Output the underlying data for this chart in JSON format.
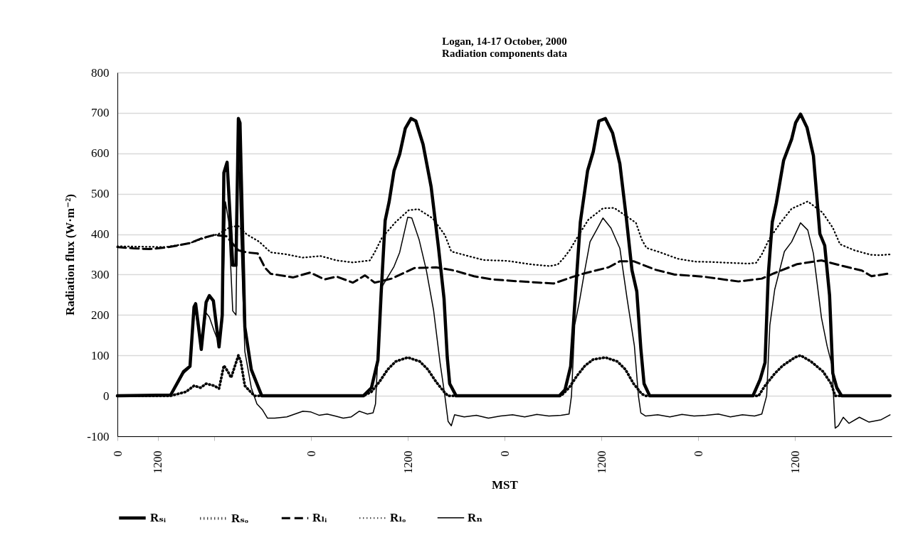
{
  "chart_data": {
    "type": "line",
    "title": "Logan, 14-17 October, 2000",
    "subtitle": "Radiation components data",
    "xlabel": "MST",
    "ylabel": "Radiation flux (W·m⁻²)",
    "xlim": [
      "2000-10-14T00:00",
      "2000-10-18T00:00"
    ],
    "xticks": [
      {
        "value": "2000-10-14T00:00",
        "label": "0"
      },
      {
        "value": "2000-10-14T05:00",
        "label": "1200"
      },
      {
        "value": "2000-10-14T12:00",
        "label": null
      },
      {
        "value": "2000-10-15T00:00",
        "label": "0"
      },
      {
        "value": "2000-10-15T12:00",
        "label": "1200"
      },
      {
        "value": "2000-10-16T00:00",
        "label": "0"
      },
      {
        "value": "2000-10-16T12:00",
        "label": "1200"
      },
      {
        "value": "2000-10-17T00:00",
        "label": "0"
      },
      {
        "value": "2000-10-17T12:00",
        "label": "1200"
      }
    ],
    "ylim": [
      -100,
      800
    ],
    "yticks": [
      -100,
      0,
      100,
      200,
      300,
      400,
      500,
      600,
      700,
      800
    ],
    "grid": "y",
    "legend": "bottom",
    "marker": "none",
    "series": [
      {
        "name": "Rₛᵢ",
        "color": "#000000",
        "line_style": "solid",
        "x": [
          "2000-10-14T00:00",
          "2000-10-14T06:36",
          "2000-10-14T08:12",
          "2000-10-14T09:00",
          "2000-10-14T09:30",
          "2000-10-14T09:42",
          "2000-10-14T10:24",
          "2000-10-14T11:00",
          "2000-10-14T11:24",
          "2000-10-14T11:54",
          "2000-10-14T12:36",
          "2000-10-14T13:00",
          "2000-10-14T13:12",
          "2000-10-14T13:36",
          "2000-10-14T14:18",
          "2000-10-14T14:42",
          "2000-10-14T15:00",
          "2000-10-14T15:12",
          "2000-10-14T15:48",
          "2000-10-14T16:36",
          "2000-10-14T17:18",
          "2000-10-14T17:54",
          "2000-10-15T06:30",
          "2000-10-15T07:30",
          "2000-10-15T08:18",
          "2000-10-15T08:42",
          "2000-10-15T09:12",
          "2000-10-15T09:42",
          "2000-10-15T10:18",
          "2000-10-15T11:00",
          "2000-10-15T11:42",
          "2000-10-15T12:24",
          "2000-10-15T13:00",
          "2000-10-15T13:54",
          "2000-10-15T14:54",
          "2000-10-15T15:48",
          "2000-10-15T16:30",
          "2000-10-15T16:54",
          "2000-10-15T17:12",
          "2000-10-15T18:00",
          "2000-10-16T06:48",
          "2000-10-16T07:30",
          "2000-10-16T08:12",
          "2000-10-16T08:48",
          "2000-10-16T09:24",
          "2000-10-16T10:18",
          "2000-10-16T11:00",
          "2000-10-16T11:42",
          "2000-10-16T12:30",
          "2000-10-16T13:24",
          "2000-10-16T14:18",
          "2000-10-16T15:06",
          "2000-10-16T15:48",
          "2000-10-16T16:24",
          "2000-10-16T16:54",
          "2000-10-16T17:18",
          "2000-10-16T18:00",
          "2000-10-17T06:48",
          "2000-10-17T07:42",
          "2000-10-17T08:18",
          "2000-10-17T08:42",
          "2000-10-17T09:12",
          "2000-10-17T09:42",
          "2000-10-17T10:36",
          "2000-10-17T11:36",
          "2000-10-17T12:06",
          "2000-10-17T12:42",
          "2000-10-17T13:30",
          "2000-10-17T14:18",
          "2000-10-17T15:06",
          "2000-10-17T15:42",
          "2000-10-17T16:18",
          "2000-10-17T16:42",
          "2000-10-17T17:12",
          "2000-10-17T17:48",
          "2000-10-17T23:48"
        ],
        "values": [
          0,
          2,
          60,
          73,
          220,
          228,
          115,
          232,
          248,
          235,
          121,
          200,
          552,
          578,
          323,
          323,
          686,
          675,
          170,
          65,
          30,
          0,
          0,
          20,
          88,
          253,
          434,
          481,
          557,
          598,
          662,
          686,
          680,
          622,
          517,
          369,
          240,
          95,
          30,
          0,
          0,
          15,
          73,
          255,
          430,
          557,
          604,
          680,
          686,
          650,
          574,
          440,
          311,
          258,
          117,
          30,
          0,
          0,
          41,
          82,
          299,
          430,
          477,
          582,
          635,
          676,
          697,
          664,
          594,
          401,
          372,
          249,
          56,
          20,
          0,
          0
        ]
      },
      {
        "name": "Rₛₒ",
        "color": "#000000",
        "line_style": "dotted",
        "x": [
          "2000-10-14T00:00",
          "2000-10-14T06:36",
          "2000-10-14T08:30",
          "2000-10-14T09:30",
          "2000-10-14T10:18",
          "2000-10-14T11:00",
          "2000-10-14T12:00",
          "2000-10-14T12:36",
          "2000-10-14T13:12",
          "2000-10-14T13:42",
          "2000-10-14T14:06",
          "2000-10-14T15:00",
          "2000-10-14T15:18",
          "2000-10-14T15:48",
          "2000-10-14T16:30",
          "2000-10-14T17:00",
          "2000-10-15T06:30",
          "2000-10-15T07:30",
          "2000-10-15T08:30",
          "2000-10-15T09:30",
          "2000-10-15T10:30",
          "2000-10-15T12:00",
          "2000-10-15T13:30",
          "2000-10-15T14:30",
          "2000-10-15T15:30",
          "2000-10-15T16:30",
          "2000-10-15T17:00",
          "2000-10-16T07:00",
          "2000-10-16T08:00",
          "2000-10-16T09:00",
          "2000-10-16T10:00",
          "2000-10-16T11:00",
          "2000-10-16T12:30",
          "2000-10-16T14:00",
          "2000-10-16T15:00",
          "2000-10-16T16:00",
          "2000-10-16T17:00",
          "2000-10-16T17:30",
          "2000-10-17T07:30",
          "2000-10-17T08:18",
          "2000-10-17T09:30",
          "2000-10-17T10:30",
          "2000-10-17T12:00",
          "2000-10-17T12:42",
          "2000-10-17T14:00",
          "2000-10-17T15:30",
          "2000-10-17T16:30",
          "2000-10-17T17:00",
          "2000-10-17T23:48"
        ],
        "values": [
          0,
          0,
          10,
          25,
          20,
          30,
          25,
          18,
          75,
          60,
          45,
          100,
          85,
          25,
          10,
          0,
          0,
          10,
          35,
          65,
          85,
          95,
          85,
          65,
          35,
          10,
          0,
          0,
          20,
          50,
          75,
          90,
          95,
          85,
          65,
          30,
          5,
          0,
          0,
          25,
          55,
          75,
          95,
          100,
          85,
          60,
          30,
          0,
          0
        ]
      },
      {
        "name": "Rₗᵢ",
        "color": "#000000",
        "line_style": "dashed",
        "x": [
          "2000-10-14T00:00",
          "2000-10-14T02:00",
          "2000-10-14T04:00",
          "2000-10-14T06:00",
          "2000-10-14T07:30",
          "2000-10-14T09:00",
          "2000-10-14T10:30",
          "2000-10-14T12:00",
          "2000-10-14T13:30",
          "2000-10-14T15:00",
          "2000-10-14T16:00",
          "2000-10-14T17:24",
          "2000-10-14T18:18",
          "2000-10-14T19:00",
          "2000-10-14T21:48",
          "2000-10-14T23:54",
          "2000-10-15T01:42",
          "2000-10-15T03:12",
          "2000-10-15T05:12",
          "2000-10-15T06:42",
          "2000-10-15T07:54",
          "2000-10-15T10:00",
          "2000-10-15T12:48",
          "2000-10-15T15:30",
          "2000-10-15T17:48",
          "2000-10-15T20:12",
          "2000-10-15T22:30",
          "2000-10-16T02:00",
          "2000-10-16T06:06",
          "2000-10-16T08:24",
          "2000-10-16T09:54",
          "2000-10-16T12:54",
          "2000-10-16T14:18",
          "2000-10-16T16:00",
          "2000-10-16T18:42",
          "2000-10-16T21:06",
          "2000-10-17T00:36",
          "2000-10-17T05:00",
          "2000-10-17T07:54",
          "2000-10-17T09:24",
          "2000-10-17T12:18",
          "2000-10-17T15:18",
          "2000-10-17T18:12",
          "2000-10-17T20:18",
          "2000-10-17T21:30",
          "2000-10-17T23:48"
        ],
        "values": [
          368,
          365,
          363,
          367,
          372,
          378,
          390,
          398,
          395,
          360,
          355,
          352,
          317,
          302,
          293,
          305,
          288,
          295,
          280,
          298,
          280,
          290,
          316,
          318,
          310,
          296,
          288,
          283,
          278,
          294,
          303,
          318,
          333,
          333,
          312,
          300,
          295,
          283,
          290,
          303,
          326,
          335,
          320,
          310,
          296,
          303
        ]
      },
      {
        "name": "Rₗₒ",
        "color": "#000000",
        "line_style": "dotted",
        "x": [
          "2000-10-14T00:00",
          "2000-10-14T06:00",
          "2000-10-14T09:00",
          "2000-10-14T11:00",
          "2000-10-14T12:30",
          "2000-10-14T14:00",
          "2000-10-14T15:00",
          "2000-10-14T16:00",
          "2000-10-14T17:36",
          "2000-10-14T19:00",
          "2000-10-14T21:00",
          "2000-10-14T23:00",
          "2000-10-15T01:12",
          "2000-10-15T03:12",
          "2000-10-15T05:12",
          "2000-10-15T07:18",
          "2000-10-15T07:54",
          "2000-10-15T08:48",
          "2000-10-15T10:30",
          "2000-10-15T12:06",
          "2000-10-15T13:18",
          "2000-10-15T15:06",
          "2000-10-15T16:36",
          "2000-10-15T17:24",
          "2000-10-15T19:18",
          "2000-10-15T21:24",
          "2000-10-16T00:18",
          "2000-10-16T03:24",
          "2000-10-16T05:36",
          "2000-10-16T06:36",
          "2000-10-16T07:18",
          "2000-10-16T08:06",
          "2000-10-16T09:12",
          "2000-10-16T10:24",
          "2000-10-16T12:12",
          "2000-10-16T13:36",
          "2000-10-16T15:18",
          "2000-10-16T16:18",
          "2000-10-16T17:00",
          "2000-10-16T17:36",
          "2000-10-16T19:18",
          "2000-10-16T21:30",
          "2000-10-16T23:42",
          "2000-10-17T01:48",
          "2000-10-17T04:00",
          "2000-10-17T06:12",
          "2000-10-17T07:12",
          "2000-10-17T07:54",
          "2000-10-17T08:48",
          "2000-10-17T10:12",
          "2000-10-17T11:36",
          "2000-10-17T13:36",
          "2000-10-17T15:24",
          "2000-10-17T16:42",
          "2000-10-17T17:36",
          "2000-10-17T19:24",
          "2000-10-17T21:24",
          "2000-10-17T22:36",
          "2000-10-17T23:48"
        ],
        "values": [
          370,
          368,
          378,
          392,
          400,
          418,
          420,
          400,
          381,
          355,
          350,
          342,
          346,
          335,
          330,
          335,
          355,
          391,
          430,
          459,
          462,
          439,
          398,
          357,
          347,
          336,
          334,
          325,
          321,
          325,
          340,
          361,
          398,
          436,
          464,
          465,
          442,
          428,
          387,
          366,
          355,
          339,
          332,
          331,
          329,
          327,
          329,
          350,
          387,
          428,
          463,
          481,
          454,
          416,
          375,
          360,
          349,
          348,
          350
        ]
      },
      {
        "name": "Rₙ",
        "color": "#000000",
        "line_style": "solid",
        "x": [
          "2000-10-14T00:00",
          "2000-10-14T06:36",
          "2000-10-14T08:12",
          "2000-10-14T09:00",
          "2000-10-14T09:30",
          "2000-10-14T09:42",
          "2000-10-14T10:24",
          "2000-10-14T11:00",
          "2000-10-14T11:24",
          "2000-10-14T12:00",
          "2000-10-14T12:36",
          "2000-10-14T13:00",
          "2000-10-14T13:24",
          "2000-10-14T13:48",
          "2000-10-14T14:18",
          "2000-10-14T14:42",
          "2000-10-14T15:00",
          "2000-10-14T15:18",
          "2000-10-14T15:48",
          "2000-10-14T16:36",
          "2000-10-14T17:18",
          "2000-10-14T18:00",
          "2000-10-14T18:36",
          "2000-10-14T19:30",
          "2000-10-14T21:00",
          "2000-10-14T22:00",
          "2000-10-14T23:00",
          "2000-10-15T00:00",
          "2000-10-15T01:00",
          "2000-10-15T02:00",
          "2000-10-15T03:00",
          "2000-10-15T04:00",
          "2000-10-15T05:00",
          "2000-10-15T06:00",
          "2000-10-15T07:00",
          "2000-10-15T07:42",
          "2000-10-15T08:00",
          "2000-10-15T08:18",
          "2000-10-15T08:48",
          "2000-10-15T10:18",
          "2000-10-15T11:00",
          "2000-10-15T12:00",
          "2000-10-15T12:30",
          "2000-10-15T13:24",
          "2000-10-15T14:18",
          "2000-10-15T15:12",
          "2000-10-15T16:00",
          "2000-10-15T16:36",
          "2000-10-15T17:00",
          "2000-10-15T17:24",
          "2000-10-15T17:48",
          "2000-10-15T19:00",
          "2000-10-15T20:30",
          "2000-10-15T22:00",
          "2000-10-15T23:30",
          "2000-10-16T01:00",
          "2000-10-16T02:30",
          "2000-10-16T04:00",
          "2000-10-16T05:30",
          "2000-10-16T07:00",
          "2000-10-16T08:00",
          "2000-10-16T08:18",
          "2000-10-16T08:42",
          "2000-10-16T09:18",
          "2000-10-16T09:54",
          "2000-10-16T10:36",
          "2000-10-16T11:24",
          "2000-10-16T12:12",
          "2000-10-16T13:12",
          "2000-10-16T14:18",
          "2000-10-16T15:12",
          "2000-10-16T16:06",
          "2000-10-16T16:36",
          "2000-10-16T16:54",
          "2000-10-16T17:30",
          "2000-10-16T19:00",
          "2000-10-16T20:30",
          "2000-10-16T22:00",
          "2000-10-16T23:30",
          "2000-10-17T01:00",
          "2000-10-17T02:30",
          "2000-10-17T04:00",
          "2000-10-17T05:30",
          "2000-10-17T07:00",
          "2000-10-17T07:54",
          "2000-10-17T08:30",
          "2000-10-17T08:54",
          "2000-10-17T09:30",
          "2000-10-17T10:42",
          "2000-10-17T11:36",
          "2000-10-17T12:42",
          "2000-10-17T13:36",
          "2000-10-17T14:18",
          "2000-10-17T15:18",
          "2000-10-17T16:00",
          "2000-10-17T16:36",
          "2000-10-17T17:00",
          "2000-10-17T17:24",
          "2000-10-17T18:00",
          "2000-10-17T18:42",
          "2000-10-17T20:00",
          "2000-10-17T21:12",
          "2000-10-17T22:42",
          "2000-10-17T23:48"
        ],
        "values": [
          0,
          0,
          55,
          70,
          200,
          205,
          120,
          205,
          195,
          160,
          130,
          180,
          480,
          430,
          210,
          200,
          640,
          400,
          110,
          20,
          -20,
          -35,
          -55,
          -55,
          -52,
          -45,
          -38,
          -40,
          -48,
          -45,
          -50,
          -55,
          -52,
          -38,
          -45,
          -42,
          -20,
          100,
          270,
          320,
          355,
          442,
          440,
          387,
          311,
          212,
          83,
          0,
          -63,
          -74,
          -47,
          -52,
          -48,
          -55,
          -50,
          -47,
          -52,
          -46,
          -50,
          -48,
          -45,
          0,
          175,
          235,
          305,
          381,
          410,
          440,
          415,
          365,
          240,
          124,
          0,
          -42,
          -50,
          -47,
          -52,
          -46,
          -50,
          -48,
          -45,
          -52,
          -47,
          -50,
          -45,
          0,
          175,
          263,
          357,
          381,
          428,
          410,
          352,
          193,
          123,
          76,
          -80,
          -74,
          -53,
          -68,
          -53,
          -65,
          -59,
          -47
        ]
      }
    ]
  }
}
